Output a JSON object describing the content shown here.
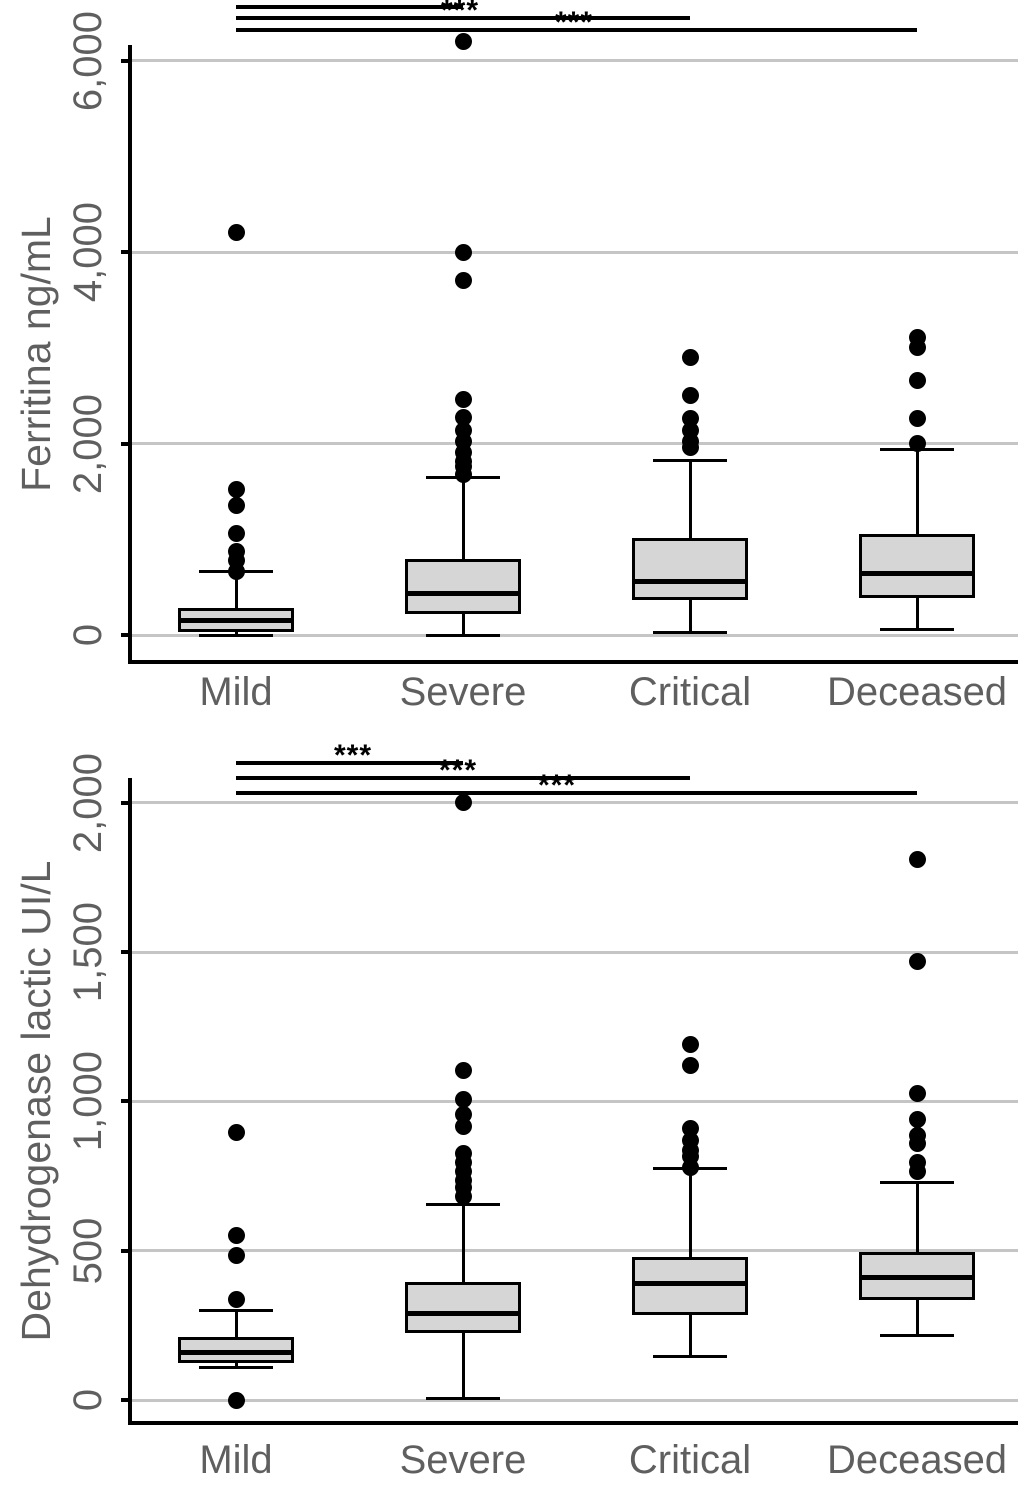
{
  "figure": {
    "type": "paired-boxplot-figure",
    "background": "#ffffff"
  },
  "colors": {
    "box_fill": "#d6d6d6",
    "box_border": "#000000",
    "median": "#000000",
    "whisker": "#000000",
    "outlier": "#000000",
    "gridline": "#c5c5c5",
    "axis_line": "#000000",
    "label_text": "#5f5f5f",
    "significance": "#000000"
  },
  "charts": [
    {
      "id": "ferritin",
      "ylabel": "Ferritina ng/mL",
      "categories": [
        "Mild",
        "Severe",
        "Critical",
        "Deceased"
      ],
      "yticks": [
        {
          "value": 0,
          "label": "0"
        },
        {
          "value": 2000,
          "label": "2,000"
        },
        {
          "value": 4000,
          "label": "4,000"
        },
        {
          "value": 6000,
          "label": "6,000"
        }
      ],
      "significance": [
        {
          "from": "Mild",
          "to": "Severe",
          "label": "***"
        },
        {
          "from": "Mild",
          "to": "Critical",
          "label": "***"
        },
        {
          "from": "Mild",
          "to": "Deceased",
          "label": "***"
        }
      ],
      "chart_data": {
        "type": "boxplot",
        "title": "",
        "xlabel": "",
        "ylabel": "Ferritina ng/mL",
        "ylim": [
          0,
          6500
        ],
        "grid": true,
        "groups": [
          {
            "group": "Mild",
            "whisker_low": 0,
            "q1": 30,
            "median": 155,
            "q3": 280,
            "whisker_high": 660,
            "outliers": [
              660,
              775,
              875,
              1055,
              1350,
              1515,
              4200
            ]
          },
          {
            "group": "Severe",
            "whisker_low": 0,
            "q1": 220,
            "median": 430,
            "q3": 795,
            "whisker_high": 1650,
            "outliers": [
              1680,
              1755,
              1815,
              1910,
              2025,
              2140,
              2275,
              2455,
              3700,
              4000,
              6200
            ]
          },
          {
            "group": "Critical",
            "whisker_low": 30,
            "q1": 370,
            "median": 560,
            "q3": 1010,
            "whisker_high": 1820,
            "outliers": [
              1960,
              2020,
              2140,
              2265,
              2505,
              2900
            ]
          },
          {
            "group": "Deceased",
            "whisker_low": 60,
            "q1": 390,
            "median": 640,
            "q3": 1050,
            "whisker_high": 1940,
            "outliers": [
              2005,
              2265,
              2660,
              3000,
              3110
            ]
          }
        ]
      }
    },
    {
      "id": "ldh",
      "ylabel": "Dehydrogenase lactic UI/L",
      "categories": [
        "Mild",
        "Severe",
        "Critical",
        "Deceased"
      ],
      "yticks": [
        {
          "value": 0,
          "label": "0"
        },
        {
          "value": 500,
          "label": "500"
        },
        {
          "value": 1000,
          "label": "1,000"
        },
        {
          "value": 1500,
          "label": "1,500"
        },
        {
          "value": 2000,
          "label": "2,000"
        }
      ],
      "significance": [
        {
          "from": "Mild",
          "to": "Severe",
          "label": "***"
        },
        {
          "from": "Mild",
          "to": "Critical",
          "label": "***"
        },
        {
          "from": "Mild",
          "to": "Deceased",
          "label": "***"
        }
      ],
      "chart_data": {
        "type": "boxplot",
        "title": "",
        "xlabel": "",
        "ylabel": "Dehydrogenase lactic UI/L",
        "ylim": [
          0,
          2100
        ],
        "grid": true,
        "groups": [
          {
            "group": "Mild",
            "whisker_low": 110,
            "q1": 125,
            "median": 160,
            "q3": 210,
            "whisker_high": 300,
            "outliers": [
              0,
              335,
              485,
              550,
              895
            ]
          },
          {
            "group": "Severe",
            "whisker_low": 5,
            "q1": 225,
            "median": 290,
            "q3": 395,
            "whisker_high": 655,
            "outliers": [
              680,
              710,
              735,
              765,
              795,
              825,
              915,
              955,
              1005,
              1105,
              2000
            ]
          },
          {
            "group": "Critical",
            "whisker_low": 145,
            "q1": 285,
            "median": 390,
            "q3": 480,
            "whisker_high": 775,
            "outliers": [
              780,
              815,
              835,
              870,
              910,
              1120,
              1190
            ]
          },
          {
            "group": "Deceased",
            "whisker_low": 215,
            "q1": 335,
            "median": 410,
            "q3": 495,
            "whisker_high": 730,
            "outliers": [
              765,
              795,
              860,
              885,
              940,
              1025,
              1470,
              1810
            ]
          }
        ]
      }
    }
  ]
}
